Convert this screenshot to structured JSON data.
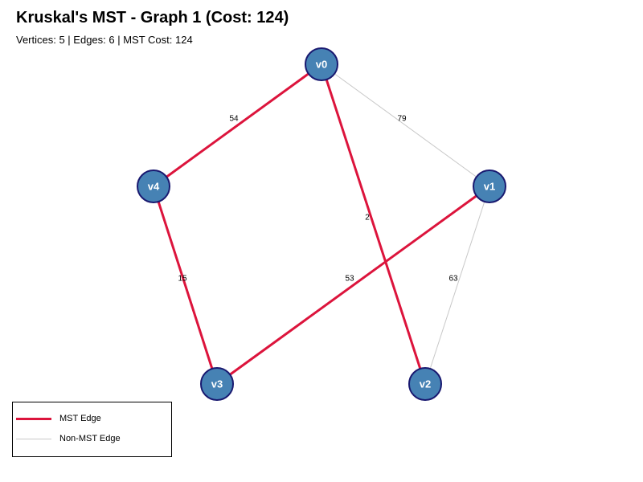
{
  "header": {
    "title": "Kruskal's MST - Graph 1 (Cost: 124)",
    "subtitle": "Vertices: 5 | Edges: 6 | MST Cost: 124"
  },
  "colors": {
    "mst_edge": "#dc143c",
    "non_mst_edge": "#c8c8c8",
    "node_fill": "#4682b4",
    "node_stroke": "#191970",
    "node_text": "#ffffff"
  },
  "graph": {
    "nodes": [
      {
        "id": "v0",
        "label": "v0"
      },
      {
        "id": "v1",
        "label": "v1"
      },
      {
        "id": "v2",
        "label": "v2"
      },
      {
        "id": "v3",
        "label": "v3"
      },
      {
        "id": "v4",
        "label": "v4"
      }
    ],
    "edges": [
      {
        "from": "v0",
        "to": "v1",
        "weight": "79",
        "mst": false
      },
      {
        "from": "v1",
        "to": "v2",
        "weight": "63",
        "mst": false
      },
      {
        "from": "v0",
        "to": "v4",
        "weight": "54",
        "mst": true
      },
      {
        "from": "v0",
        "to": "v2",
        "weight": "2",
        "mst": true
      },
      {
        "from": "v4",
        "to": "v3",
        "weight": "15",
        "mst": true
      },
      {
        "from": "v1",
        "to": "v3",
        "weight": "53",
        "mst": true
      }
    ]
  },
  "legend": {
    "items": [
      {
        "label": "MST Edge",
        "type": "mst"
      },
      {
        "label": "Non-MST Edge",
        "type": "non_mst"
      }
    ]
  }
}
